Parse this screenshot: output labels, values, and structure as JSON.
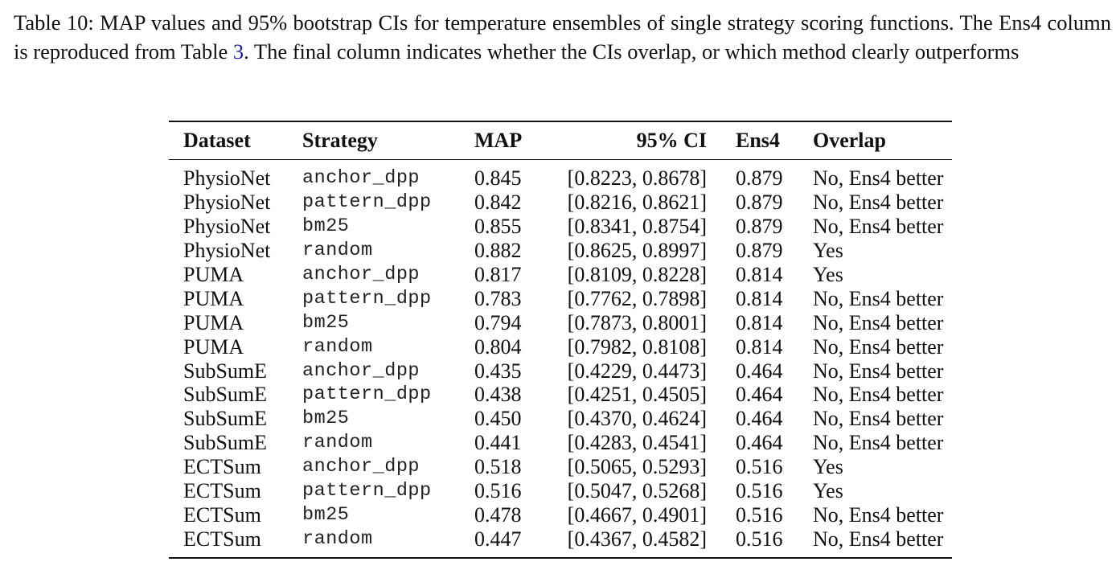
{
  "caption": {
    "part1": "Table 10: MAP values and 95% bootstrap CIs for temperature ensembles of single strategy scoring functions. The Ens4 column is reproduced from Table ",
    "ref": "3",
    "part2": ". The final column indicates whether the CIs overlap, or which method clearly outperforms"
  },
  "table": {
    "headers": {
      "dataset": "Dataset",
      "strategy": "Strategy",
      "map": "MAP",
      "ci": "95% CI",
      "ens4": "Ens4",
      "overlap": "Overlap"
    },
    "rows": [
      {
        "dataset": "PhysioNet",
        "strategy": "anchor_dpp",
        "map": "0.845",
        "ci": "[0.8223, 0.8678]",
        "ens4": "0.879",
        "overlap": "No, Ens4 better"
      },
      {
        "dataset": "PhysioNet",
        "strategy": "pattern_dpp",
        "map": "0.842",
        "ci": "[0.8216, 0.8621]",
        "ens4": "0.879",
        "overlap": "No, Ens4 better"
      },
      {
        "dataset": "PhysioNet",
        "strategy": "bm25",
        "map": "0.855",
        "ci": "[0.8341, 0.8754]",
        "ens4": "0.879",
        "overlap": "No, Ens4 better"
      },
      {
        "dataset": "PhysioNet",
        "strategy": "random",
        "map": "0.882",
        "ci": "[0.8625, 0.8997]",
        "ens4": "0.879",
        "overlap": "Yes"
      },
      {
        "dataset": "PUMA",
        "strategy": "anchor_dpp",
        "map": "0.817",
        "ci": "[0.8109, 0.8228]",
        "ens4": "0.814",
        "overlap": "Yes"
      },
      {
        "dataset": "PUMA",
        "strategy": "pattern_dpp",
        "map": "0.783",
        "ci": "[0.7762, 0.7898]",
        "ens4": "0.814",
        "overlap": "No, Ens4 better"
      },
      {
        "dataset": "PUMA",
        "strategy": "bm25",
        "map": "0.794",
        "ci": "[0.7873, 0.8001]",
        "ens4": "0.814",
        "overlap": "No, Ens4 better"
      },
      {
        "dataset": "PUMA",
        "strategy": "random",
        "map": "0.804",
        "ci": "[0.7982, 0.8108]",
        "ens4": "0.814",
        "overlap": "No, Ens4 better"
      },
      {
        "dataset": "SubSumE",
        "strategy": "anchor_dpp",
        "map": "0.435",
        "ci": "[0.4229, 0.4473]",
        "ens4": "0.464",
        "overlap": "No, Ens4 better"
      },
      {
        "dataset": "SubSumE",
        "strategy": "pattern_dpp",
        "map": "0.438",
        "ci": "[0.4251, 0.4505]",
        "ens4": "0.464",
        "overlap": "No, Ens4 better"
      },
      {
        "dataset": "SubSumE",
        "strategy": "bm25",
        "map": "0.450",
        "ci": "[0.4370, 0.4624]",
        "ens4": "0.464",
        "overlap": "No, Ens4 better"
      },
      {
        "dataset": "SubSumE",
        "strategy": "random",
        "map": "0.441",
        "ci": "[0.4283, 0.4541]",
        "ens4": "0.464",
        "overlap": "No, Ens4 better"
      },
      {
        "dataset": "ECTSum",
        "strategy": "anchor_dpp",
        "map": "0.518",
        "ci": "[0.5065, 0.5293]",
        "ens4": "0.516",
        "overlap": "Yes"
      },
      {
        "dataset": "ECTSum",
        "strategy": "pattern_dpp",
        "map": "0.516",
        "ci": "[0.5047, 0.5268]",
        "ens4": "0.516",
        "overlap": "Yes"
      },
      {
        "dataset": "ECTSum",
        "strategy": "bm25",
        "map": "0.478",
        "ci": "[0.4667, 0.4901]",
        "ens4": "0.516",
        "overlap": "No, Ens4 better"
      },
      {
        "dataset": "ECTSum",
        "strategy": "random",
        "map": "0.447",
        "ci": "[0.4367, 0.4582]",
        "ens4": "0.516",
        "overlap": "No, Ens4 better"
      }
    ]
  }
}
